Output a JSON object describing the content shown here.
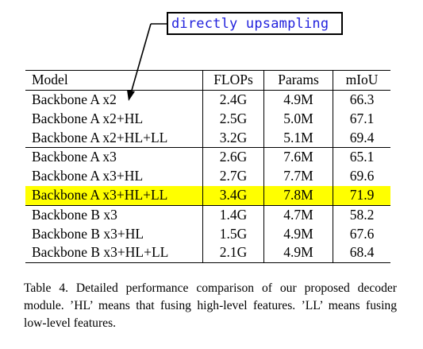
{
  "annotation": {
    "text": "directly upsampling"
  },
  "table": {
    "headers": [
      "Model",
      "FLOPs",
      "Params",
      "mIoU"
    ],
    "rows": [
      {
        "model": "Backbone A x2",
        "flops": "2.4G",
        "params": "4.9M",
        "miou": "66.3"
      },
      {
        "model": "Backbone A x2+HL",
        "flops": "2.5G",
        "params": "5.0M",
        "miou": "67.1"
      },
      {
        "model": "Backbone A x2+HL+LL",
        "flops": "3.2G",
        "params": "5.1M",
        "miou": "69.4"
      },
      {
        "model": "Backbone A x3",
        "flops": "2.6G",
        "params": "7.6M",
        "miou": "65.1"
      },
      {
        "model": "Backbone A x3+HL",
        "flops": "2.7G",
        "params": "7.7M",
        "miou": "69.6"
      },
      {
        "model": "Backbone A x3+HL+LL",
        "flops": "3.4G",
        "params": "7.8M",
        "miou": "71.9"
      },
      {
        "model": "Backbone B x3",
        "flops": "1.4G",
        "params": "4.7M",
        "miou": "58.2"
      },
      {
        "model": "Backbone B x3+HL",
        "flops": "1.5G",
        "params": "4.9M",
        "miou": "67.6"
      },
      {
        "model": "Backbone B x3+HL+LL",
        "flops": "2.1G",
        "params": "4.9M",
        "miou": "68.4"
      }
    ],
    "highlight_color": "#ffff00"
  },
  "caption": {
    "text": "Table 4. Detailed performance comparison of our proposed decoder module. ’HL’ means that fusing high-level features. ’LL’ means fusing low-level features."
  }
}
